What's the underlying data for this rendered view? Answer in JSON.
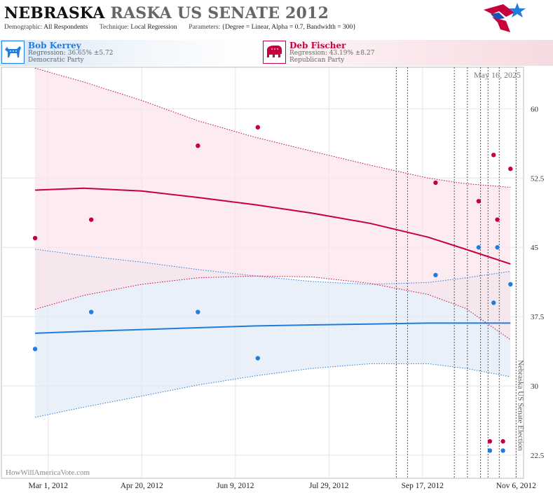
{
  "header": {
    "title_state": "NEBRASKA",
    "title_race": "RASKA US SENATE 2012",
    "demographic_label": "Demographic:",
    "demographic_value": "All Respondents",
    "technique_label": "Technique:",
    "technique_value": "Local Regression",
    "parameters_label": "Parameters:",
    "parameters_value": "{Degree = Linear, Alpha = 0.7, Bandwidth = 300}"
  },
  "candidates": [
    {
      "name": "Bob Kerrey",
      "regression": "Regression: 36.65% ±5.72",
      "party": "Democratic Party",
      "color": "#1f7de0",
      "icon": "donkey-icon"
    },
    {
      "name": "Deb Fischer",
      "regression": "Regression: 43.19% ±8.27",
      "party": "Republican Party",
      "color": "#c8003c",
      "icon": "elephant-icon"
    }
  ],
  "chart_data": {
    "type": "scatter",
    "date_label": "May 16, 2025",
    "watermark": "HowWillAmericaVote.com",
    "event_label": "Nebraska US Senate Election",
    "x_ticks": [
      {
        "date": "2012-03-01",
        "label": "Mar 1, 2012"
      },
      {
        "date": "2012-04-20",
        "label": "Apr 20, 2012"
      },
      {
        "date": "2012-06-09",
        "label": "Jun 9, 2012"
      },
      {
        "date": "2012-07-29",
        "label": "Jul 29, 2012"
      },
      {
        "date": "2012-09-17",
        "label": "Sep 17, 2012"
      },
      {
        "date": "2012-11-06",
        "label": "Nov 6, 2012"
      }
    ],
    "y_ticks": [
      22.5,
      30,
      37.5,
      45,
      52.5,
      60
    ],
    "ylim": [
      20,
      64.5
    ],
    "xlim": [
      "2012-02-05",
      "2012-11-10"
    ],
    "grid": true,
    "vlines": [
      {
        "date": "2012-09-03",
        "color": "#8a2a8a"
      },
      {
        "date": "2012-09-09",
        "color": "#2a6aa8"
      },
      {
        "date": "2012-10-04",
        "color": "#555"
      },
      {
        "date": "2012-10-11",
        "color": "#555"
      },
      {
        "date": "2012-10-18",
        "color": "#555"
      },
      {
        "date": "2012-10-22",
        "color": "#555"
      },
      {
        "date": "2012-10-28",
        "color": "#555"
      },
      {
        "date": "2012-11-06",
        "color": "#555"
      }
    ],
    "series": [
      {
        "name": "Bob Kerrey",
        "color": "#1f7de0",
        "band_fill": "#dfe9f6",
        "points": [
          {
            "x": "2012-02-23",
            "y": 34
          },
          {
            "x": "2012-03-24",
            "y": 38
          },
          {
            "x": "2012-05-20",
            "y": 38
          },
          {
            "x": "2012-06-21",
            "y": 33
          },
          {
            "x": "2012-09-24",
            "y": 42
          },
          {
            "x": "2012-10-17",
            "y": 45
          },
          {
            "x": "2012-10-23",
            "y": 23
          },
          {
            "x": "2012-10-25",
            "y": 39
          },
          {
            "x": "2012-10-27",
            "y": 45
          },
          {
            "x": "2012-10-30",
            "y": 23
          },
          {
            "x": "2012-11-03",
            "y": 41
          }
        ],
        "fit": [
          {
            "x": "2012-02-23",
            "y": 35.7
          },
          {
            "x": "2012-03-20",
            "y": 35.9
          },
          {
            "x": "2012-04-20",
            "y": 36.1
          },
          {
            "x": "2012-05-20",
            "y": 36.3
          },
          {
            "x": "2012-06-20",
            "y": 36.5
          },
          {
            "x": "2012-07-20",
            "y": 36.6
          },
          {
            "x": "2012-08-20",
            "y": 36.7
          },
          {
            "x": "2012-09-20",
            "y": 36.8
          },
          {
            "x": "2012-10-10",
            "y": 36.8
          },
          {
            "x": "2012-11-03",
            "y": 36.8
          }
        ],
        "upper": [
          {
            "x": "2012-02-23",
            "y": 44.8
          },
          {
            "x": "2012-03-20",
            "y": 44.1
          },
          {
            "x": "2012-04-20",
            "y": 43.4
          },
          {
            "x": "2012-05-20",
            "y": 42.6
          },
          {
            "x": "2012-06-20",
            "y": 41.9
          },
          {
            "x": "2012-07-20",
            "y": 41.3
          },
          {
            "x": "2012-08-20",
            "y": 41
          },
          {
            "x": "2012-09-20",
            "y": 41.2
          },
          {
            "x": "2012-10-10",
            "y": 41.7
          },
          {
            "x": "2012-11-03",
            "y": 42.4
          }
        ],
        "lower": [
          {
            "x": "2012-02-23",
            "y": 26.6
          },
          {
            "x": "2012-03-20",
            "y": 27.7
          },
          {
            "x": "2012-04-20",
            "y": 28.9
          },
          {
            "x": "2012-05-20",
            "y": 30.1
          },
          {
            "x": "2012-06-20",
            "y": 31.1
          },
          {
            "x": "2012-07-20",
            "y": 31.9
          },
          {
            "x": "2012-08-20",
            "y": 32.4
          },
          {
            "x": "2012-09-20",
            "y": 32.4
          },
          {
            "x": "2012-10-10",
            "y": 31.9
          },
          {
            "x": "2012-11-03",
            "y": 31
          }
        ]
      },
      {
        "name": "Deb Fischer",
        "color": "#c8003c",
        "band_fill": "#fbe3ea",
        "points": [
          {
            "x": "2012-02-23",
            "y": 46
          },
          {
            "x": "2012-03-24",
            "y": 48
          },
          {
            "x": "2012-05-20",
            "y": 56
          },
          {
            "x": "2012-06-21",
            "y": 58
          },
          {
            "x": "2012-09-24",
            "y": 52
          },
          {
            "x": "2012-10-17",
            "y": 50
          },
          {
            "x": "2012-10-23",
            "y": 24
          },
          {
            "x": "2012-10-25",
            "y": 55
          },
          {
            "x": "2012-10-27",
            "y": 48
          },
          {
            "x": "2012-10-30",
            "y": 24
          },
          {
            "x": "2012-11-03",
            "y": 53.5
          }
        ],
        "fit": [
          {
            "x": "2012-02-23",
            "y": 51.2
          },
          {
            "x": "2012-03-20",
            "y": 51.4
          },
          {
            "x": "2012-04-20",
            "y": 51.1
          },
          {
            "x": "2012-05-20",
            "y": 50.4
          },
          {
            "x": "2012-06-20",
            "y": 49.6
          },
          {
            "x": "2012-07-20",
            "y": 48.7
          },
          {
            "x": "2012-08-20",
            "y": 47.6
          },
          {
            "x": "2012-09-20",
            "y": 46.1
          },
          {
            "x": "2012-10-10",
            "y": 44.8
          },
          {
            "x": "2012-11-03",
            "y": 43.2
          }
        ],
        "upper": [
          {
            "x": "2012-02-23",
            "y": 64.4
          },
          {
            "x": "2012-03-20",
            "y": 62.9
          },
          {
            "x": "2012-04-20",
            "y": 60.9
          },
          {
            "x": "2012-05-20",
            "y": 58.7
          },
          {
            "x": "2012-06-20",
            "y": 56.9
          },
          {
            "x": "2012-07-20",
            "y": 55.4
          },
          {
            "x": "2012-08-20",
            "y": 53.9
          },
          {
            "x": "2012-09-20",
            "y": 52.5
          },
          {
            "x": "2012-10-10",
            "y": 51.9
          },
          {
            "x": "2012-11-03",
            "y": 51.5
          }
        ],
        "lower": [
          {
            "x": "2012-02-23",
            "y": 38.3
          },
          {
            "x": "2012-03-20",
            "y": 39.8
          },
          {
            "x": "2012-04-20",
            "y": 41
          },
          {
            "x": "2012-05-20",
            "y": 41.7
          },
          {
            "x": "2012-06-20",
            "y": 41.9
          },
          {
            "x": "2012-07-20",
            "y": 41.8
          },
          {
            "x": "2012-08-20",
            "y": 41.1
          },
          {
            "x": "2012-09-20",
            "y": 39.9
          },
          {
            "x": "2012-10-10",
            "y": 38.4
          },
          {
            "x": "2012-11-03",
            "y": 35
          }
        ]
      }
    ]
  }
}
